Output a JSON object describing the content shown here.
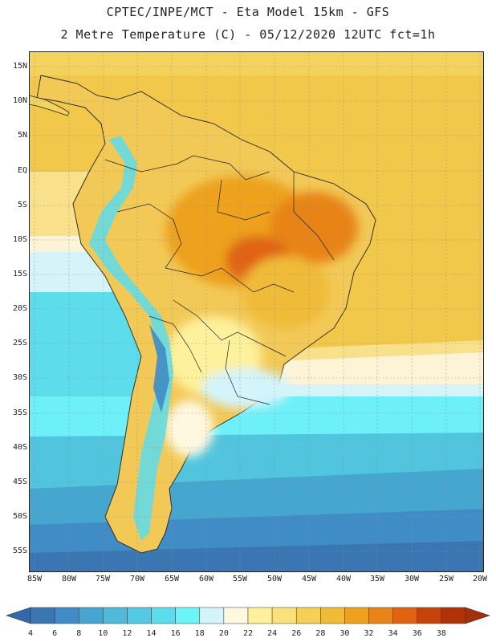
{
  "title": {
    "line1": "CPTEC/INPE/MCT -  Eta Model 15km - GFS",
    "line2": "2 Metre Temperature (C) - 05/12/2020 12UTC fct=1h"
  },
  "map": {
    "region": "South America",
    "variable": "2 Metre Temperature",
    "unit": "C",
    "lat_labels": [
      "15N",
      "10N",
      "5N",
      "EQ",
      "5S",
      "10S",
      "15S",
      "20S",
      "25S",
      "30S",
      "35S",
      "40S",
      "45S",
      "50S",
      "55S"
    ],
    "lon_labels": [
      "85W",
      "80W",
      "75W",
      "70W",
      "65W",
      "60W",
      "55W",
      "50W",
      "45W",
      "40W",
      "35W",
      "30W",
      "25W",
      "20W"
    ]
  },
  "colorbar": {
    "levels": [
      "4",
      "6",
      "8",
      "10",
      "12",
      "14",
      "16",
      "18",
      "20",
      "22",
      "24",
      "26",
      "28",
      "30",
      "32",
      "34",
      "36",
      "38"
    ],
    "colors": [
      "#3a77b2",
      "#3f8cc6",
      "#46a6d1",
      "#4fbada",
      "#55c9e2",
      "#5ddcec",
      "#6df4f8",
      "#d3f4fb",
      "#fef8e0",
      "#fdf19b",
      "#f9e27b",
      "#f5cf58",
      "#f0bb37",
      "#eda11e",
      "#e88419",
      "#e06312",
      "#c74409",
      "#b03307"
    ],
    "low_end_color": "#3468a8",
    "high_end_color": "#a3300a"
  }
}
